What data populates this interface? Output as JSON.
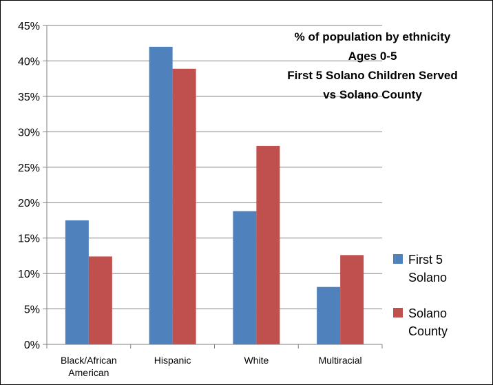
{
  "chart_data": {
    "type": "bar",
    "title": [
      "% of population by ethnicity",
      "Ages 0-5",
      "First 5 Solano Children Served",
      "vs Solano County"
    ],
    "categories": [
      [
        "Black/African",
        "American"
      ],
      [
        "Hispanic"
      ],
      [
        "White"
      ],
      [
        "Multiracial"
      ]
    ],
    "series": [
      {
        "name": [
          "First 5",
          "Solano"
        ],
        "color": "#4f81bd",
        "values": [
          17.5,
          42.0,
          18.8,
          8.1
        ]
      },
      {
        "name": [
          "Solano",
          "County"
        ],
        "color": "#c0504d",
        "values": [
          12.4,
          38.9,
          28.0,
          12.6
        ]
      }
    ],
    "ylim": [
      0,
      45
    ],
    "yticks": [
      "0%",
      "5%",
      "10%",
      "15%",
      "20%",
      "25%",
      "30%",
      "35%",
      "40%",
      "45%"
    ],
    "grid": true,
    "legend_position": "right"
  }
}
